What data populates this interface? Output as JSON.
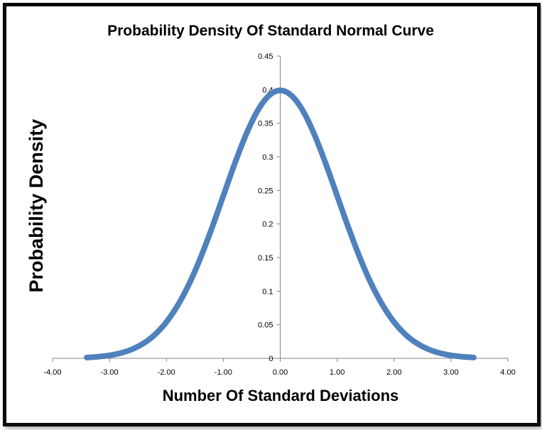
{
  "chart_data": {
    "type": "line",
    "title": "Probability Density Of Standard Normal Curve",
    "xlabel": "Number Of Standard Deviations",
    "ylabel": "Probability Density",
    "xlim": [
      -4,
      4
    ],
    "ylim": [
      0,
      0.45
    ],
    "x_ticks": [
      "-4.00",
      "-3.00",
      "-2.00",
      "-1.00",
      "0.00",
      "1.00",
      "2.00",
      "3.00",
      "4.00"
    ],
    "y_ticks": [
      "0",
      "0.05",
      "0.1",
      "0.15",
      "0.2",
      "0.25",
      "0.3",
      "0.35",
      "0.4",
      "0.45"
    ],
    "grid": false,
    "legend": "none",
    "series": [
      {
        "color": "#4f81bd",
        "x": [
          -3.4,
          -3.2,
          -3.0,
          -2.8,
          -2.6,
          -2.4,
          -2.2,
          -2.0,
          -1.8,
          -1.6,
          -1.4,
          -1.2,
          -1.0,
          -0.8,
          -0.6,
          -0.4,
          -0.2,
          0.0,
          0.2,
          0.4,
          0.6,
          0.8,
          1.0,
          1.2,
          1.4,
          1.6,
          1.8,
          2.0,
          2.2,
          2.4,
          2.6,
          2.8,
          3.0,
          3.2,
          3.4
        ],
        "y": [
          0.0012,
          0.0024,
          0.0044,
          0.0079,
          0.0136,
          0.0224,
          0.0355,
          0.054,
          0.079,
          0.1109,
          0.1497,
          0.1942,
          0.242,
          0.2897,
          0.3332,
          0.3683,
          0.391,
          0.3989,
          0.391,
          0.3683,
          0.3332,
          0.2897,
          0.242,
          0.1942,
          0.1497,
          0.1109,
          0.079,
          0.054,
          0.0355,
          0.0224,
          0.0136,
          0.0079,
          0.0044,
          0.0024,
          0.0012
        ]
      }
    ]
  }
}
